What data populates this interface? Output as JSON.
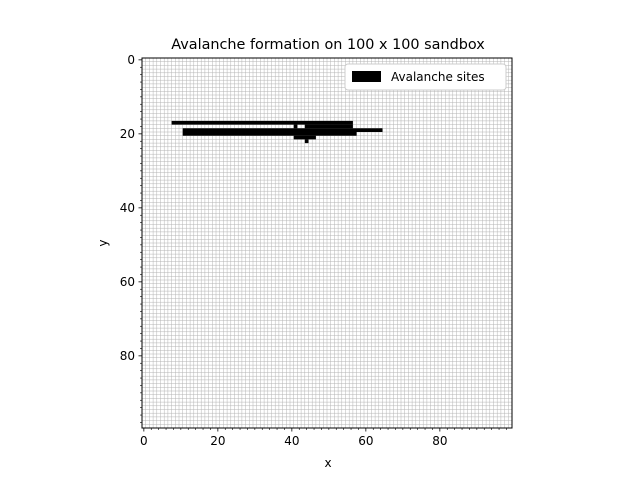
{
  "chart_data": {
    "type": "heatmap",
    "title": "Avalanche formation on 100 x 100 sandbox",
    "xlabel": "x",
    "ylabel": "y",
    "xlim": [
      -0.5,
      99.5
    ],
    "ylim": [
      99.5,
      -0.5
    ],
    "y_axis_inverted": true,
    "x_ticks": [
      0,
      20,
      40,
      60,
      80
    ],
    "y_ticks": [
      0,
      20,
      40,
      60,
      80
    ],
    "x_tick_labels": [
      "0",
      "20",
      "40",
      "60",
      "80"
    ],
    "y_tick_labels": [
      "0",
      "20",
      "40",
      "60",
      "80"
    ],
    "grid": true,
    "grid_spacing": 1,
    "legend": {
      "location": "top-right",
      "entries": [
        "Avalanche sites"
      ]
    },
    "colors": {
      "site": "#000000",
      "grid": "#b4b4b4",
      "background": "#ffffff"
    },
    "series": [
      {
        "name": "Avalanche sites",
        "cells_by_row": [
          {
            "y": 17,
            "x_ranges": [
              [
                8,
                56
              ]
            ]
          },
          {
            "y": 18,
            "x_ranges": [
              [
                41,
                41
              ],
              [
                44,
                56
              ]
            ]
          },
          {
            "y": 19,
            "x_ranges": [
              [
                11,
                64
              ]
            ]
          },
          {
            "y": 20,
            "x_ranges": [
              [
                11,
                57
              ]
            ]
          },
          {
            "y": 21,
            "x_ranges": [
              [
                41,
                46
              ]
            ]
          },
          {
            "y": 22,
            "x_ranges": [
              [
                44,
                44
              ]
            ]
          }
        ]
      }
    ]
  }
}
